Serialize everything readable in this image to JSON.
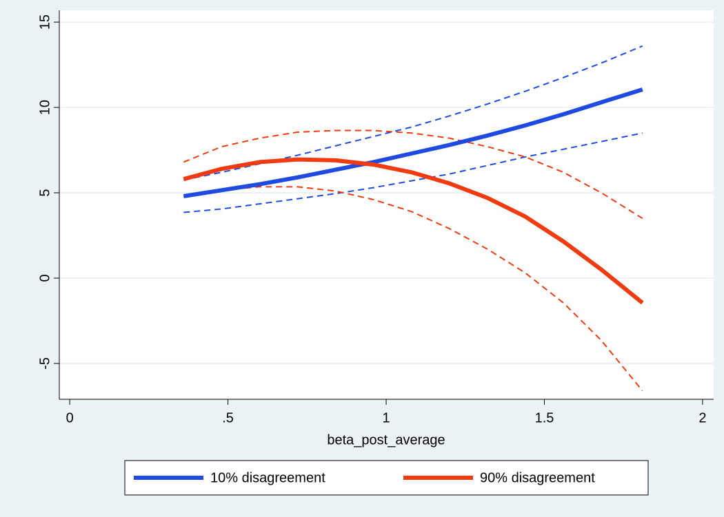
{
  "chart_data": {
    "type": "line",
    "x_label": "beta_post_average",
    "x": [
      0.36,
      0.48,
      0.6,
      0.72,
      0.84,
      0.96,
      1.08,
      1.2,
      1.32,
      1.44,
      1.56,
      1.68,
      1.81
    ],
    "series": [
      {
        "color": "#1f4ae0",
        "dashed": true,
        "values": [
          5.75,
          6.2,
          6.7,
          7.2,
          7.75,
          8.3,
          8.85,
          9.5,
          10.2,
          10.95,
          11.75,
          12.6,
          13.6
        ]
      },
      {
        "color": "#1f4ae0",
        "dashed": true,
        "values": [
          3.85,
          4.05,
          4.35,
          4.65,
          4.95,
          5.3,
          5.7,
          6.1,
          6.6,
          7.1,
          7.55,
          8.0,
          8.5
        ]
      },
      {
        "color": "#f03a10",
        "dashed": true,
        "values": [
          6.8,
          7.7,
          8.2,
          8.55,
          8.65,
          8.65,
          8.5,
          8.2,
          7.7,
          7.1,
          6.2,
          5.0,
          3.5
        ]
      },
      {
        "color": "#f03a10",
        "dashed": true,
        "values": [
          4.75,
          5.15,
          5.35,
          5.35,
          5.1,
          4.6,
          3.9,
          2.9,
          1.7,
          0.3,
          -1.45,
          -3.65,
          -6.6
        ]
      },
      {
        "name": "10% disagreement",
        "color": "#1f4ae0",
        "values": [
          4.8,
          5.15,
          5.5,
          5.9,
          6.35,
          6.8,
          7.3,
          7.8,
          8.35,
          8.95,
          9.6,
          10.3,
          11.05
        ]
      },
      {
        "name": "90% disagreement",
        "color": "#f03a10",
        "values": [
          5.8,
          6.4,
          6.8,
          6.95,
          6.9,
          6.65,
          6.2,
          5.55,
          4.7,
          3.6,
          2.15,
          0.5,
          -1.45
        ]
      }
    ],
    "xlim": [
      -0.033,
      2.035
    ],
    "ylim": [
      -7.1,
      15.69
    ],
    "xticks": [
      0,
      {
        "value": 0.5,
        "label": ".5"
      },
      1,
      {
        "value": 1.5,
        "label": "1.5"
      },
      2
    ],
    "yticks": [
      15,
      10,
      5,
      0,
      -5
    ],
    "grid": true,
    "legend": "bottom"
  }
}
